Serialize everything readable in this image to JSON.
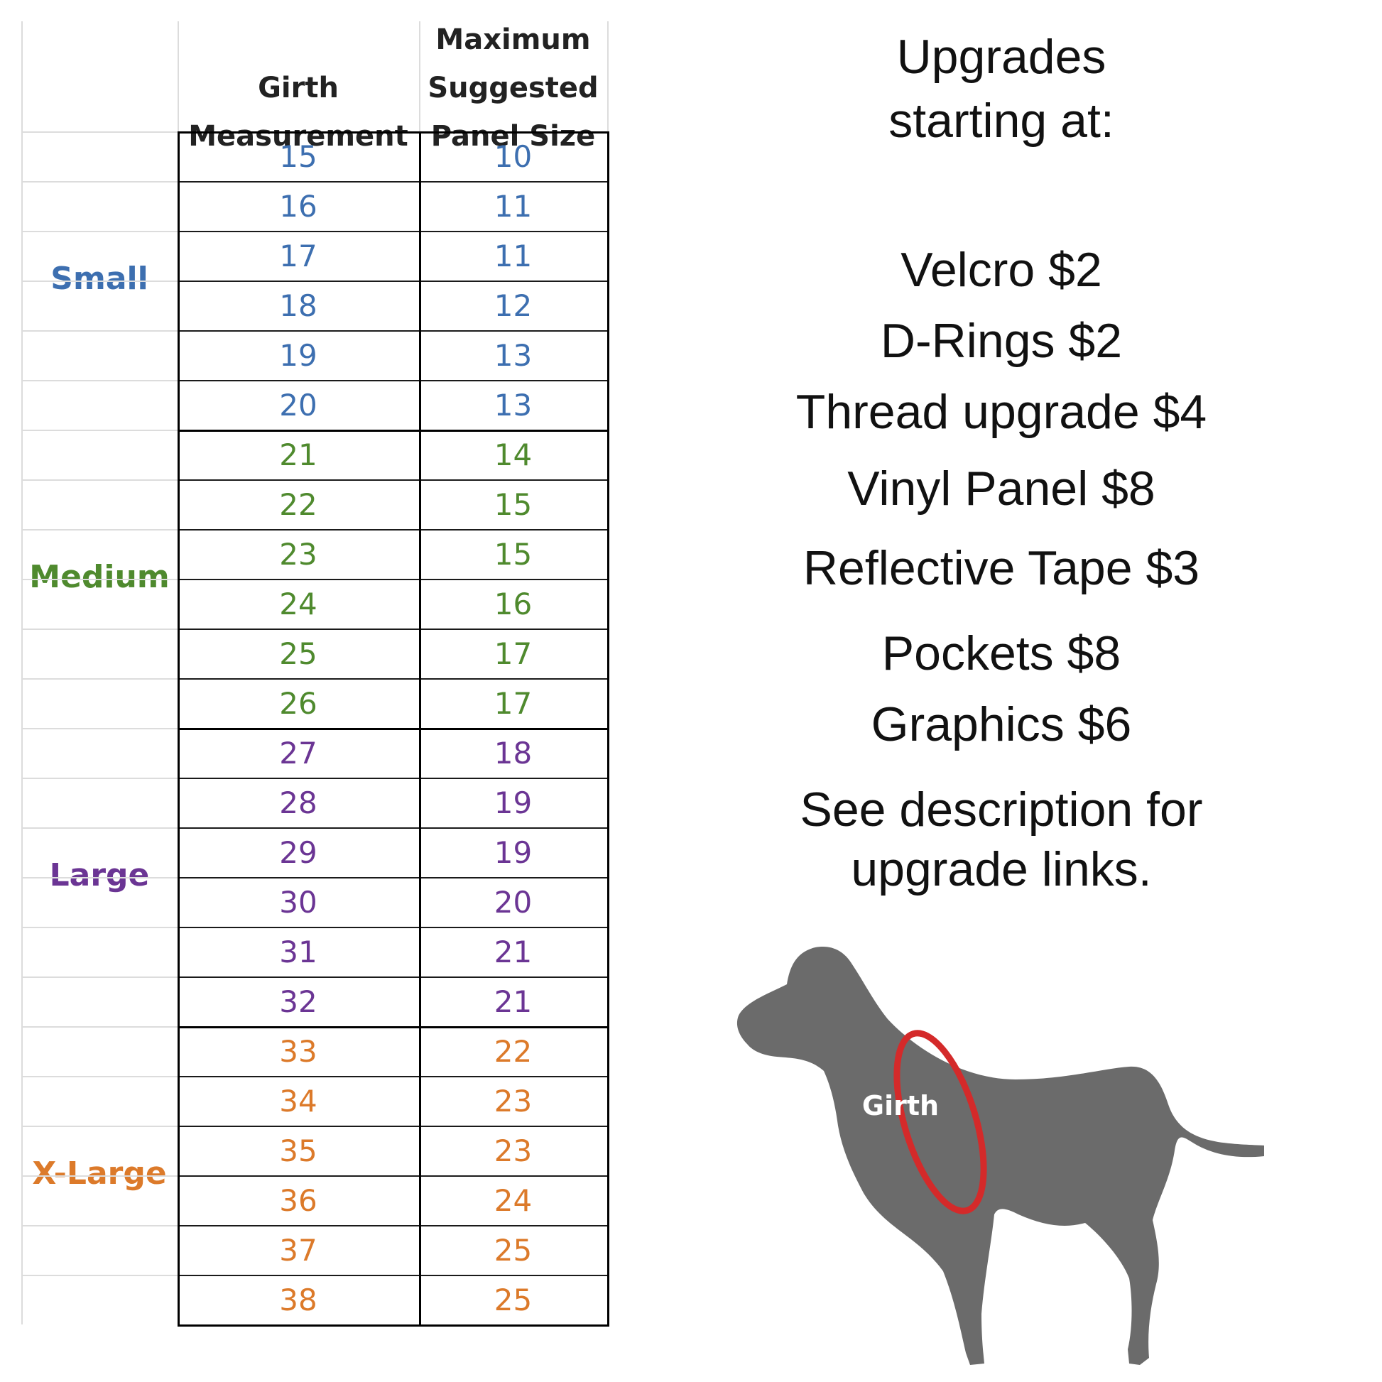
{
  "table": {
    "header": {
      "col1_line1": "Girth",
      "col1_line2": "Measurement",
      "col2_line1": "Maximum",
      "col2_line2": "Suggested",
      "col2_line3": "Panel Size"
    },
    "groups": [
      {
        "label": "Small",
        "color": "#3d6fb0",
        "rows": [
          [
            "15",
            "10"
          ],
          [
            "16",
            "11"
          ],
          [
            "17",
            "11"
          ],
          [
            "18",
            "12"
          ],
          [
            "19",
            "13"
          ],
          [
            "20",
            "13"
          ]
        ]
      },
      {
        "label": "Medium",
        "color": "#4f8a2e",
        "rows": [
          [
            "21",
            "14"
          ],
          [
            "22",
            "15"
          ],
          [
            "23",
            "15"
          ],
          [
            "24",
            "16"
          ],
          [
            "25",
            "17"
          ],
          [
            "26",
            "17"
          ]
        ]
      },
      {
        "label": "Large",
        "color": "#6b3594",
        "rows": [
          [
            "27",
            "18"
          ],
          [
            "28",
            "19"
          ],
          [
            "29",
            "19"
          ],
          [
            "30",
            "20"
          ],
          [
            "31",
            "21"
          ],
          [
            "32",
            "21"
          ]
        ]
      },
      {
        "label": "X-Large",
        "color": "#dc7a2a",
        "rows": [
          [
            "33",
            "22"
          ],
          [
            "34",
            "23"
          ],
          [
            "35",
            "23"
          ],
          [
            "36",
            "24"
          ],
          [
            "37",
            "25"
          ],
          [
            "38",
            "25"
          ]
        ]
      }
    ]
  },
  "upgrades": {
    "heading_line1": "Upgrades",
    "heading_line2": "starting at:",
    "items": [
      "Velcro $2",
      "D-Rings $2",
      "Thread upgrade $4",
      "Vinyl Panel $8",
      "Reflective Tape $3",
      "Pockets $8",
      "Graphics $6"
    ],
    "note_line1": "See description for",
    "note_line2": "upgrade links."
  },
  "dog": {
    "girth_label": "Girth",
    "body_color": "#6b6b6b",
    "ring_color": "#d42a2a"
  }
}
